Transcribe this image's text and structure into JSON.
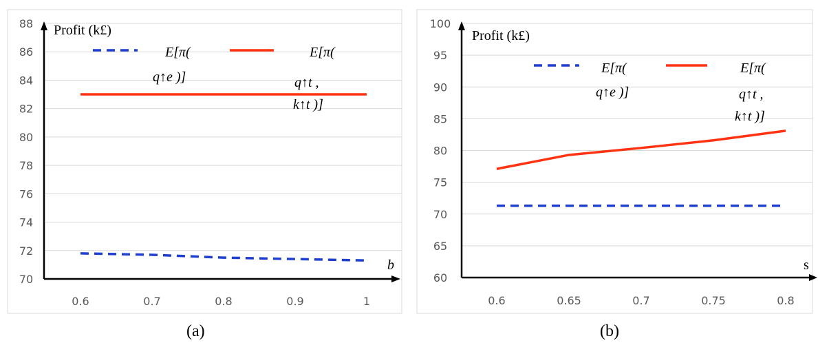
{
  "chart_data": [
    {
      "type": "line",
      "caption": "(a)",
      "ylabel": "Profit (k£)",
      "xlabel": "b",
      "ylim": [
        70,
        88
      ],
      "ytick_step": 2,
      "categories": [
        "0.6",
        "0.7",
        "0.8",
        "0.9",
        "1"
      ],
      "grid": true,
      "legend_placement": "top",
      "series": [
        {
          "legend_lines": [
            "E[π(",
            "q↑e )]"
          ],
          "color": "#1F3FD0",
          "style": "dashed",
          "values": [
            71.8,
            71.7,
            71.5,
            71.4,
            71.3
          ]
        },
        {
          "legend_lines": [
            "E[π(",
            "q↑t ,",
            "k↑t )]"
          ],
          "color": "#FF3311",
          "style": "solid",
          "values": [
            83,
            83,
            83,
            83,
            83
          ]
        }
      ]
    },
    {
      "type": "line",
      "caption": "(b)",
      "ylabel": "Profit (k£)",
      "xlabel": "s",
      "ylim": [
        60,
        100
      ],
      "ytick_step": 5,
      "categories": [
        "0.6",
        "0.65",
        "0.7",
        "0.75",
        "0.8"
      ],
      "grid": true,
      "legend_placement": "top",
      "series": [
        {
          "legend_lines": [
            "E[π(",
            "q↑e )]"
          ],
          "color": "#1F3FD0",
          "style": "dashed",
          "values": [
            71.3,
            71.3,
            71.3,
            71.3,
            71.3
          ]
        },
        {
          "legend_lines": [
            "E[π(",
            "q↑t ,",
            "k↑t )]"
          ],
          "color": "#FF3311",
          "style": "solid",
          "values": [
            77.1,
            79.3,
            80.4,
            81.6,
            83.1
          ]
        }
      ]
    }
  ]
}
